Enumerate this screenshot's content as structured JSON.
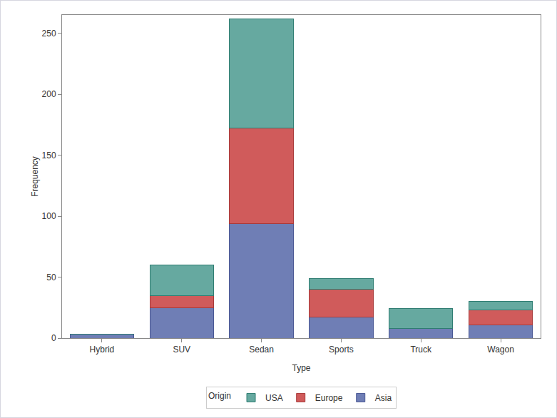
{
  "chart_data": {
    "type": "bar",
    "stacked": true,
    "x_label": "Type",
    "y_label": "Frequency",
    "categories": [
      "Hybrid",
      "SUV",
      "Sedan",
      "Sports",
      "Truck",
      "Wagon"
    ],
    "series": [
      {
        "name": "Asia",
        "color": "#6f7eb5",
        "values": [
          3,
          25,
          94,
          17,
          8,
          11
        ]
      },
      {
        "name": "Europe",
        "color": "#d05b5b",
        "values": [
          0,
          10,
          78,
          23,
          0,
          12
        ]
      },
      {
        "name": "USA",
        "color": "#66a9a0",
        "values": [
          0,
          25,
          90,
          9,
          16,
          7
        ]
      }
    ],
    "ylim": [
      0,
      265
    ],
    "yticks": [
      0,
      50,
      100,
      150,
      200,
      250
    ],
    "grid": false,
    "legend": "bottom",
    "legend_title": "Origin"
  }
}
